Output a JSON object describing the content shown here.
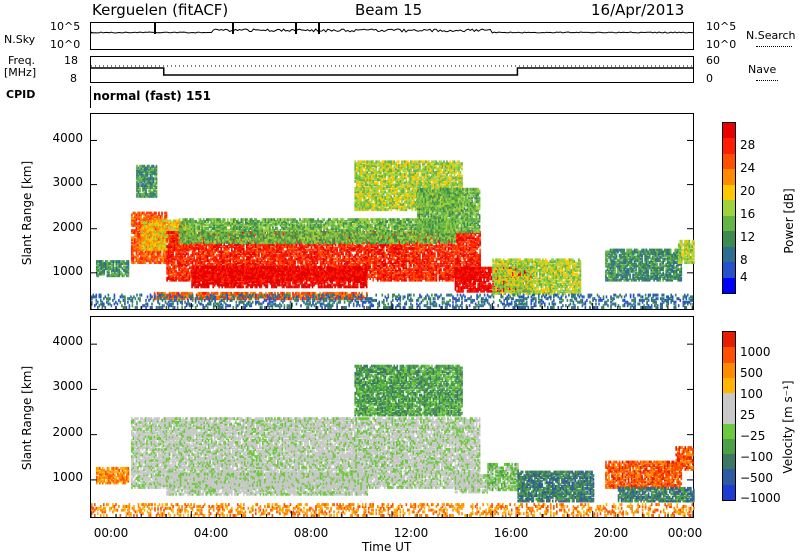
{
  "header": {
    "station": "Kerguelen (fitACF)",
    "beam": "Beam 15",
    "date": "16/Apr/2013"
  },
  "top_panels": {
    "nsky_label": "N.Sky",
    "nsky_ticks": [
      "10^5",
      "10^0"
    ],
    "nsearch_label": "N.Search",
    "nsearch_ticks": [
      "10^5",
      "10^0"
    ],
    "freq_label_1": "Freq.",
    "freq_label_2": "[MHz]",
    "freq_ticks": [
      "18",
      "8"
    ],
    "nave_label": "Nave",
    "nave_ticks": [
      "60",
      "0"
    ],
    "cpid_label": "CPID",
    "cpid_value": "normal (fast) 151"
  },
  "colors": {
    "power_scale": [
      "#0000ff",
      "#2850c8",
      "#2e6e8e",
      "#3c8c50",
      "#64b446",
      "#a0d23c",
      "#ffc800",
      "#ff8c00",
      "#ff5000",
      "#ff1e00",
      "#e60000"
    ],
    "velocity_scale": [
      "#1e3cd2",
      "#2d5aa0",
      "#3c7864",
      "#4ca046",
      "#6cc83c",
      "#c8c8c8",
      "#c8c8c8",
      "#ffb400",
      "#ff8c00",
      "#ff5000",
      "#e61e00"
    ]
  },
  "chart_data": [
    {
      "type": "heatmap",
      "name": "power",
      "xlabel": "",
      "ylabel": "Slant Range [km]",
      "xlim": [
        0,
        24
      ],
      "ylim": [
        180,
        4600
      ],
      "yticks": [
        "1000",
        "2000",
        "3000",
        "4000"
      ],
      "colorbar_title": "Power [dB]",
      "colorbar_ticks": [
        "28",
        "24",
        "20",
        "16",
        "12",
        "8",
        "4"
      ],
      "regions": [
        {
          "t0": 0.2,
          "t1": 1.5,
          "r0": 900,
          "r1": 1250,
          "level": 3
        },
        {
          "t0": 1.6,
          "t1": 3.0,
          "r0": 1200,
          "r1": 2350,
          "level": 8
        },
        {
          "t0": 2.0,
          "t1": 4.0,
          "r0": 1500,
          "r1": 2150,
          "level": 6
        },
        {
          "t0": 3.0,
          "t1": 15.5,
          "r0": 800,
          "r1": 1900,
          "level": 9
        },
        {
          "t0": 4.0,
          "t1": 11.0,
          "r0": 650,
          "r1": 1100,
          "level": 10
        },
        {
          "t0": 3.5,
          "t1": 14.5,
          "r0": 1650,
          "r1": 2200,
          "level": 4
        },
        {
          "t0": 2.5,
          "t1": 11.0,
          "r0": 380,
          "r1": 520,
          "level": 8
        },
        {
          "t0": 1.8,
          "t1": 2.6,
          "r0": 2700,
          "r1": 3400,
          "level": 3
        },
        {
          "t0": 10.5,
          "t1": 14.8,
          "r0": 2400,
          "r1": 3500,
          "level": 5
        },
        {
          "t0": 13.0,
          "t1": 15.5,
          "r0": 1900,
          "r1": 2900,
          "level": 4
        },
        {
          "t0": 14.5,
          "t1": 17.5,
          "r0": 550,
          "r1": 1100,
          "level": 10
        },
        {
          "t0": 16.0,
          "t1": 19.5,
          "r0": 500,
          "r1": 1300,
          "level": 5
        },
        {
          "t0": 20.5,
          "t1": 23.5,
          "r0": 800,
          "r1": 1500,
          "level": 3
        },
        {
          "t0": 23.4,
          "t1": 24.0,
          "r0": 1200,
          "r1": 1700,
          "level": 5
        },
        {
          "t0": 0.0,
          "t1": 24.0,
          "r0": 180,
          "r1": 500,
          "level": 2
        }
      ]
    },
    {
      "type": "heatmap",
      "name": "velocity",
      "xlabel": "Time UT",
      "ylabel": "Slant Range [km]",
      "xlim": [
        0,
        24
      ],
      "ylim": [
        180,
        4600
      ],
      "xticks": [
        "00:00",
        "04:00",
        "08:00",
        "12:00",
        "16:00",
        "20:00",
        "00:00"
      ],
      "yticks": [
        "1000",
        "2000",
        "3000",
        "4000"
      ],
      "colorbar_title": "Velocity [m s⁻¹]",
      "colorbar_ticks": [
        "1000",
        "500",
        "100",
        "25",
        "−25",
        "−100",
        "−500",
        "−1000"
      ],
      "regions": [
        {
          "t0": 0.2,
          "t1": 1.5,
          "r0": 900,
          "r1": 1250,
          "level": 8
        },
        {
          "t0": 1.6,
          "t1": 15.5,
          "r0": 800,
          "r1": 2350,
          "level": 5
        },
        {
          "t0": 3.0,
          "t1": 11.0,
          "r0": 650,
          "r1": 1100,
          "level": 5
        },
        {
          "t0": 10.5,
          "t1": 14.8,
          "r0": 2400,
          "r1": 3500,
          "level": 3
        },
        {
          "t0": 14.5,
          "t1": 15.8,
          "r0": 700,
          "r1": 1100,
          "level": 5
        },
        {
          "t0": 15.8,
          "t1": 17.0,
          "r0": 750,
          "r1": 1350,
          "level": 4
        },
        {
          "t0": 17.0,
          "t1": 20.0,
          "r0": 500,
          "r1": 1150,
          "level": 2
        },
        {
          "t0": 20.5,
          "t1": 23.5,
          "r0": 800,
          "r1": 1400,
          "level": 9
        },
        {
          "t0": 21.0,
          "t1": 24.0,
          "r0": 500,
          "r1": 800,
          "level": 2
        },
        {
          "t0": 23.3,
          "t1": 24.0,
          "r0": 1200,
          "r1": 1700,
          "level": 9
        },
        {
          "t0": 0.0,
          "t1": 24.0,
          "r0": 180,
          "r1": 450,
          "level": 8
        }
      ]
    }
  ]
}
